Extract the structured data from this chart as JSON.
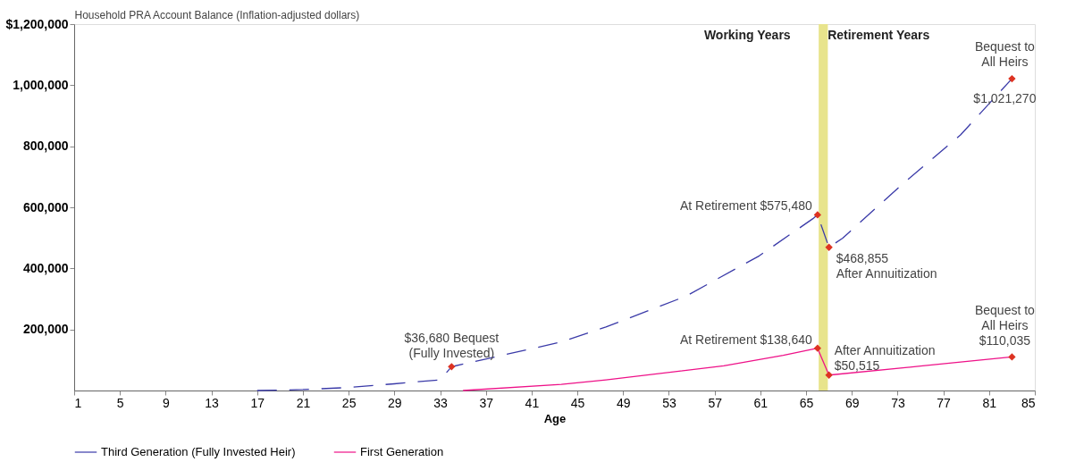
{
  "chart_data": {
    "type": "line",
    "xlabel": "Age",
    "ylabel": "Household PRA Account Balance (Inflation-adjusted dollars)",
    "xlim": [
      1,
      85
    ],
    "xticks": [
      1,
      5,
      9,
      13,
      17,
      21,
      25,
      29,
      33,
      37,
      41,
      45,
      49,
      53,
      57,
      61,
      65,
      69,
      73,
      77,
      81,
      85
    ],
    "ylim": [
      0,
      1200000
    ],
    "yticks": [
      {
        "value": 200000,
        "label": "200,000"
      },
      {
        "value": 400000,
        "label": "400,000"
      },
      {
        "value": 600000,
        "label": "600,000"
      },
      {
        "value": 800000,
        "label": "800,000"
      },
      {
        "value": 1000000,
        "label": "1,000,000"
      },
      {
        "value": 1200000,
        "label": "$1,200,000"
      }
    ],
    "series": [
      {
        "name": "Third Generation (Fully Invested Heir)",
        "color": "#3a3aa8",
        "line_style": "dashed",
        "x": [
          17,
          21,
          25,
          29,
          33,
          34,
          43.6,
          47.5,
          54.5,
          60.9,
          65.6,
          66,
          67,
          68.2,
          73.3,
          78.5,
          83
        ],
        "values": [
          0,
          3000,
          10000,
          22000,
          35000,
          78000,
          159000,
          208000,
          309000,
          441000,
          563000,
          575480,
          468855,
          499000,
          672000,
          837000,
          1021270
        ]
      },
      {
        "name": "First Generation",
        "color": "#ee1188",
        "line_style": "solid",
        "x": [
          35,
          43.6,
          47.5,
          57.8,
          63,
          66,
          67,
          75,
          83
        ],
        "values": [
          0,
          20000,
          35000,
          81000,
          115000,
          138640,
          50515,
          80000,
          110035
        ]
      },
      {
        "type": "scatter",
        "marker": "diamond",
        "color": "#dd3322",
        "x": [
          34,
          66,
          67,
          83,
          66,
          67,
          83
        ],
        "values": [
          78000,
          575480,
          468855,
          1021270,
          138640,
          50515,
          110035
        ]
      }
    ],
    "bands": [
      {
        "axis": "x",
        "from": 66.1,
        "to": 66.9,
        "color": "#e8e48c"
      }
    ],
    "annotations": [
      "Working Years",
      "Retirement Years",
      {
        "text": "$36,680 Bequest\n(Fully Invested)",
        "x": 34,
        "y": 78000
      },
      {
        "text": "At Retirement  $575,480",
        "x": 66,
        "y": 575480
      },
      {
        "text": "$468,855\nAfter Annuitization",
        "x": 67,
        "y": 468855
      },
      {
        "text": "Bequest to\nAll Heirs",
        "x": 83,
        "y": 1021270
      },
      {
        "text": "$1,021,270",
        "x": 83,
        "y": 1021270
      },
      {
        "text": "At Retirement $138,640",
        "x": 66,
        "y": 138640
      },
      {
        "text": "After Annuitization\n$50,515",
        "x": 67,
        "y": 50515
      },
      {
        "text": "Bequest to\nAll Heirs\n$110,035",
        "x": 83,
        "y": 110035
      }
    ],
    "grid": false,
    "legend": "bottom"
  }
}
